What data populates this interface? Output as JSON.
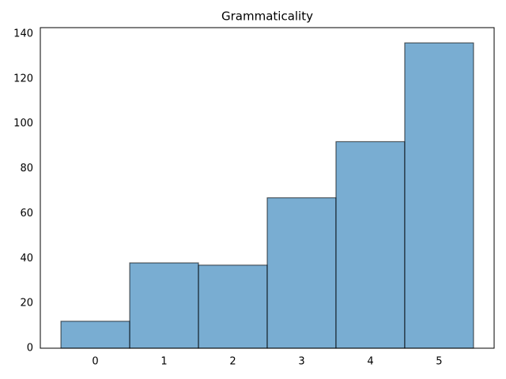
{
  "chart_data": {
    "type": "histogram",
    "title": "Grammaticality",
    "bins": [
      -0.5,
      0.5,
      1.5,
      2.5,
      3.5,
      4.5,
      5.5
    ],
    "counts": [
      12,
      38,
      37,
      67,
      92,
      136
    ],
    "color": "#1f77b4",
    "xlim": [
      -0.8,
      5.8
    ],
    "xticks": [
      0,
      1,
      2,
      3,
      4,
      5
    ],
    "ylim": [
      0,
      142.8
    ],
    "yticks": [
      0,
      20,
      40,
      60,
      80,
      100,
      120,
      140
    ],
    "grid": false
  }
}
